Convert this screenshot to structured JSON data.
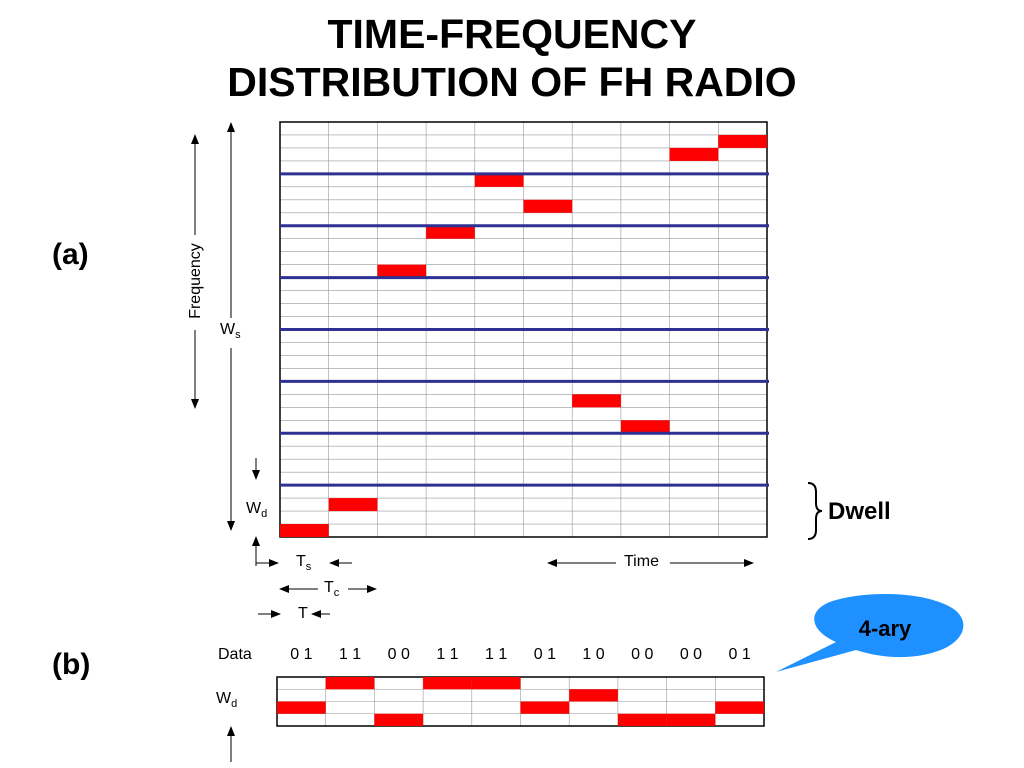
{
  "title": {
    "line1": "TIME-FREQUENCY",
    "line2": "DISTRIBUTION OF FH RADIO"
  },
  "panel_labels": {
    "a": "(a)",
    "b": "(b)"
  },
  "axis": {
    "frequency": "Frequency",
    "time": "Time",
    "ws_main": "W",
    "ws_sub": "s",
    "wd_main": "W",
    "wd_sub": "d",
    "ts_main": "T",
    "ts_sub": "s",
    "tc_main": "T",
    "tc_sub": "c",
    "t": "T"
  },
  "dwell_label": "Dwell",
  "callout": "4-ary",
  "data_row": {
    "label": "Data",
    "symbols": [
      "0 1",
      "1 1",
      "0 0",
      "1 1",
      "1 1",
      "0 1",
      "1 0",
      "0 0",
      "0 0",
      "0 1"
    ]
  },
  "wd_b": {
    "main": "W",
    "sub": "d"
  },
  "colors": {
    "hop": "#ff0000",
    "band_line": "#2e3192",
    "grid": "#999999",
    "callout": "#1e90ff"
  },
  "grid_a": {
    "columns": 10,
    "rows": 32,
    "band_boundaries": [
      4,
      8,
      12,
      16,
      20,
      24,
      28
    ],
    "hops_row_from_bottom": [
      0,
      2,
      20,
      23,
      27,
      25,
      10,
      8,
      29,
      30
    ]
  },
  "grid_b": {
    "columns": 10,
    "rows": 4,
    "hops_row_from_bottom": [
      1,
      3,
      0,
      3,
      3,
      1,
      2,
      0,
      0,
      1
    ]
  }
}
